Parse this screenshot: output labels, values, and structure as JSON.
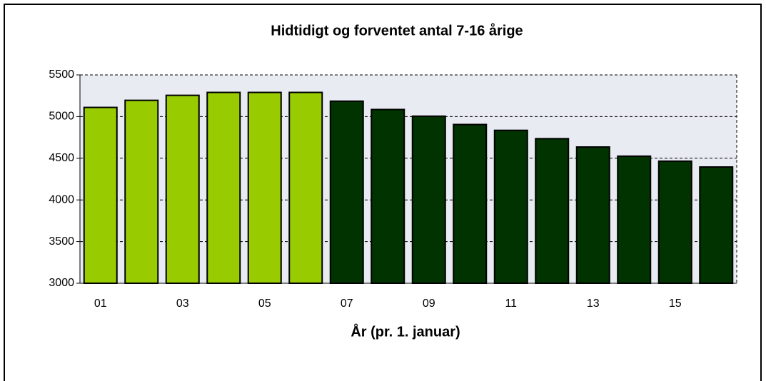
{
  "chart_data": {
    "type": "bar",
    "title": "Hidtidigt og forventet antal 7-16 årige",
    "xlabel": "År (pr. 1. januar)",
    "categories": [
      "01",
      null,
      "03",
      null,
      "05",
      null,
      "07",
      null,
      "09",
      null,
      "11",
      null,
      "13",
      null,
      "15",
      null
    ],
    "values": [
      5110,
      5195,
      5255,
      5290,
      5290,
      5290,
      5185,
      5085,
      5005,
      4905,
      4835,
      4735,
      4635,
      4525,
      4465,
      4395
    ],
    "colors": [
      "#99cc00",
      "#99cc00",
      "#99cc00",
      "#99cc00",
      "#99cc00",
      "#99cc00",
      "#003300",
      "#003300",
      "#003300",
      "#003300",
      "#003300",
      "#003300",
      "#003300",
      "#003300",
      "#003300",
      "#003300"
    ],
    "ylim": [
      3000,
      5500
    ],
    "yticks": [
      3000,
      3500,
      4000,
      4500,
      5000,
      5500
    ],
    "grid": true
  }
}
